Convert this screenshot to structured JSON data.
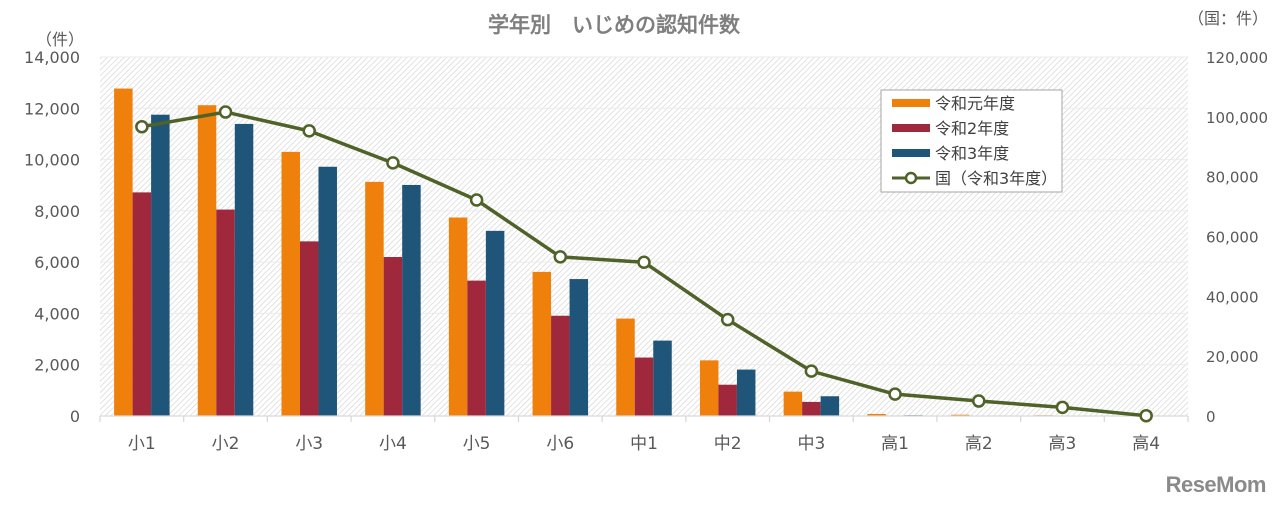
{
  "chart_data": {
    "type": "bar",
    "title": "学年別　いじめの認知件数",
    "left_axis": {
      "unit_label": "（件）",
      "range": [
        0,
        14000
      ],
      "ticks": [
        0,
        2000,
        4000,
        6000,
        8000,
        10000,
        12000,
        14000
      ],
      "tick_labels": [
        "0",
        "2,000",
        "4,000",
        "6,000",
        "8,000",
        "10,000",
        "12,000",
        "14,000"
      ]
    },
    "right_axis": {
      "unit_label": "（国：件）",
      "range": [
        0,
        120000
      ],
      "ticks": [
        0,
        20000,
        40000,
        60000,
        80000,
        100000,
        120000
      ],
      "tick_labels": [
        "0",
        "20,000",
        "40,000",
        "60,000",
        "80,000",
        "100,000",
        "120,000"
      ]
    },
    "categories": [
      "小1",
      "小2",
      "小3",
      "小4",
      "小5",
      "小6",
      "中1",
      "中2",
      "中3",
      "高1",
      "高2",
      "高3",
      "高4"
    ],
    "series": [
      {
        "name": "令和元年度",
        "kind": "bar",
        "axis": "left",
        "color": "#F0800C",
        "values": [
          12770,
          12120,
          10300,
          9130,
          7740,
          5620,
          3800,
          2170,
          950,
          80,
          50,
          30,
          0
        ]
      },
      {
        "name": "令和2年度",
        "kind": "bar",
        "axis": "left",
        "color": "#A0283C",
        "values": [
          8720,
          8050,
          6810,
          6200,
          5280,
          3910,
          2280,
          1220,
          550,
          20,
          10,
          10,
          0
        ]
      },
      {
        "name": "令和3年度",
        "kind": "bar",
        "axis": "left",
        "color": "#1F5578",
        "values": [
          11750,
          11390,
          9720,
          9010,
          7220,
          5340,
          2940,
          1810,
          770,
          30,
          20,
          10,
          0
        ]
      },
      {
        "name": "国（令和3年度）",
        "kind": "line",
        "axis": "right",
        "color": "#4F6228",
        "values": [
          96700,
          101600,
          95300,
          84600,
          72200,
          53200,
          51400,
          32200,
          15000,
          7300,
          5000,
          2900,
          100
        ]
      }
    ],
    "legend_position": "top-right",
    "grid": true
  },
  "watermark": "ReseMom"
}
